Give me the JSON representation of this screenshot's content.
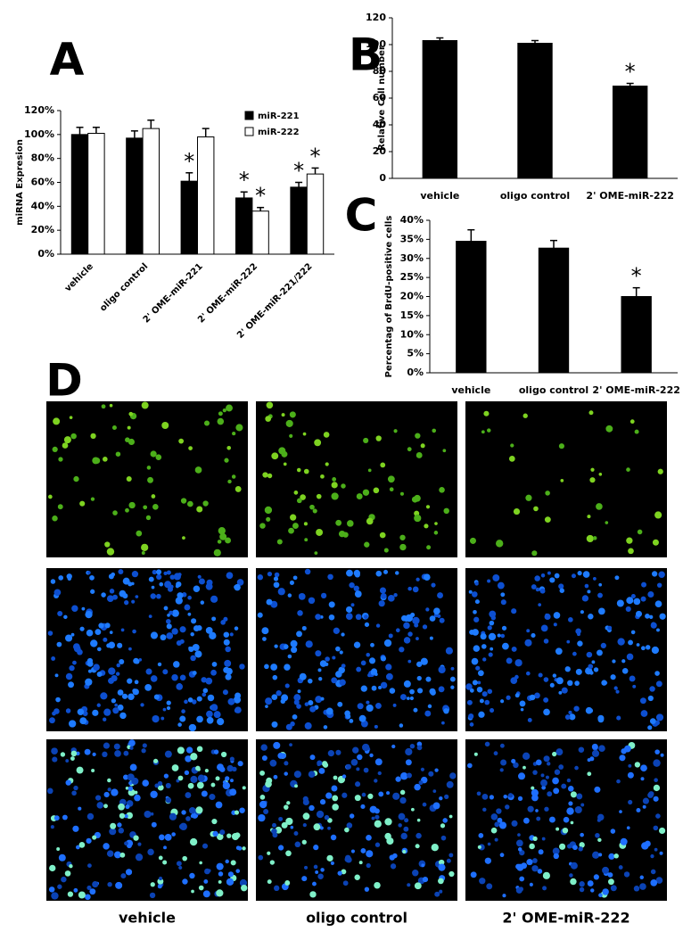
{
  "chart_data": [
    {
      "type": "bar",
      "panel": "A",
      "ylabel": "miRNA Expresion",
      "categories": [
        "vehicle",
        "oligo control",
        "2' OME-miR-221",
        "2' OME-miR-222",
        "2' OME-miR-221/222"
      ],
      "series": [
        {
          "name": "miR-221",
          "color": "#000000",
          "values": [
            100,
            97,
            61,
            47,
            56
          ],
          "errors": [
            6,
            6,
            7,
            5,
            4
          ],
          "significance": [
            null,
            null,
            "*",
            "*",
            "*"
          ]
        },
        {
          "name": "miR-222",
          "color": "#ffffff",
          "values": [
            101,
            105,
            98,
            36,
            67
          ],
          "errors": [
            5,
            7,
            7,
            3,
            5
          ],
          "significance": [
            null,
            null,
            null,
            "*",
            "*"
          ]
        }
      ],
      "ylim": [
        0,
        120
      ],
      "yticks": [
        {
          "value": 0,
          "label": "0%"
        },
        {
          "value": 20,
          "label": "20%"
        },
        {
          "value": 40,
          "label": "40%"
        },
        {
          "value": 60,
          "label": "60%"
        },
        {
          "value": 80,
          "label": "80%"
        },
        {
          "value": 100,
          "label": "100%"
        },
        {
          "value": 120,
          "label": "120%"
        }
      ]
    },
    {
      "type": "bar",
      "panel": "B",
      "ylabel": "Relative Cell number",
      "categories": [
        "vehicle",
        "oligo control",
        "2' OME-miR-222"
      ],
      "values": [
        103,
        101,
        69
      ],
      "errors": [
        2,
        2,
        2
      ],
      "significance": [
        null,
        null,
        "*"
      ],
      "color": "#000000",
      "ylim": [
        0,
        120
      ],
      "yticks": [
        0,
        20,
        40,
        60,
        80,
        100,
        120
      ]
    },
    {
      "type": "bar",
      "panel": "C",
      "ylabel": "Percentag of BrdU-positive cells",
      "categories": [
        "vehicle",
        "oligo control",
        "2' OME-miR-222"
      ],
      "values": [
        34.5,
        32.7,
        20
      ],
      "errors": [
        3,
        2,
        2.3
      ],
      "significance": [
        null,
        null,
        "*"
      ],
      "color": "#000000",
      "ylim": [
        0,
        40
      ],
      "yticks": [
        {
          "value": 0,
          "label": "0%"
        },
        {
          "value": 5,
          "label": "5%"
        },
        {
          "value": 10,
          "label": "10%"
        },
        {
          "value": 15,
          "label": "15%"
        },
        {
          "value": 20,
          "label": "20%"
        },
        {
          "value": 25,
          "label": "25%"
        },
        {
          "value": 30,
          "label": "30%"
        },
        {
          "value": 35,
          "label": "35%"
        },
        {
          "value": 40,
          "label": "40%"
        }
      ]
    }
  ],
  "panel_d": {
    "label": "D",
    "columns": [
      "vehicle",
      "oligo control",
      "2' OME-miR-222"
    ]
  }
}
